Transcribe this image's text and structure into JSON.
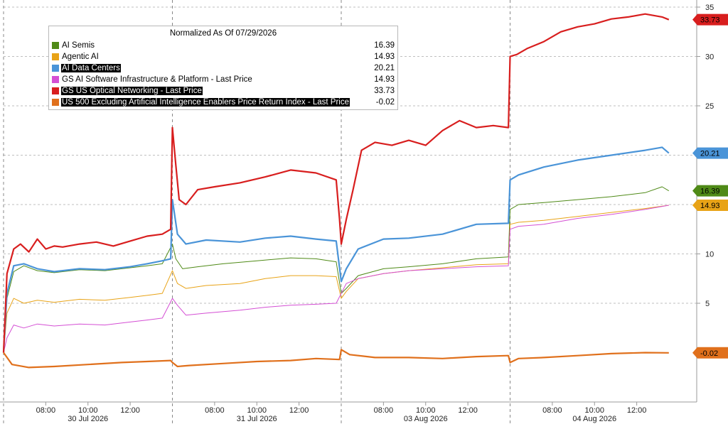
{
  "chart_data": {
    "type": "line",
    "title": "Normalized As Of 07/29/2026",
    "ylim": [
      -5,
      35
    ],
    "yticks": [
      5,
      10,
      15,
      20,
      25,
      30,
      35
    ],
    "grid": true,
    "legend_placement": "top-left",
    "x_time_ticks": [
      "08:00",
      "10:00",
      "12:00",
      "08:00",
      "10:00",
      "12:00",
      "08:00",
      "10:00",
      "12:00",
      "08:00",
      "10:00",
      "12:00"
    ],
    "x_day_labels": [
      "30 Jul 2026",
      "31 Jul 2026",
      "03 Aug 2026",
      "04 Aug 2026"
    ],
    "x_units": "sessions",
    "series": [
      {
        "name": "AI Semis",
        "color": "#4f8a17",
        "last": "16.39",
        "badge": true,
        "width": 1,
        "x": [
          0,
          0.02,
          0.06,
          0.12,
          0.2,
          0.3,
          0.45,
          0.6,
          0.75,
          0.85,
          0.94,
          1.0,
          1.02,
          1.06,
          1.15,
          1.3,
          1.5,
          1.7,
          1.85,
          1.97,
          2.0,
          2.03,
          2.1,
          2.25,
          2.4,
          2.6,
          2.8,
          2.99,
          3.0,
          3.05,
          3.2,
          3.4,
          3.6,
          3.8,
          3.9,
          3.94
        ],
        "values": [
          0,
          5.5,
          8.2,
          8.8,
          8.3,
          8.1,
          8.4,
          8.3,
          8.6,
          8.8,
          9.0,
          11.0,
          9.5,
          8.5,
          8.7,
          9.0,
          9.3,
          9.6,
          9.5,
          9.2,
          6.0,
          6.5,
          7.8,
          8.5,
          8.7,
          9.0,
          9.5,
          9.7,
          14.5,
          15.0,
          15.2,
          15.5,
          15.8,
          16.2,
          16.8,
          16.39
        ]
      },
      {
        "name": "Agentic AI",
        "color": "#e8a317",
        "last": "14.93",
        "badge": true,
        "width": 1,
        "x": [
          0,
          0.02,
          0.06,
          0.12,
          0.2,
          0.3,
          0.45,
          0.6,
          0.75,
          0.85,
          0.94,
          1.0,
          1.03,
          1.08,
          1.2,
          1.4,
          1.55,
          1.7,
          1.85,
          1.97,
          2.0,
          2.03,
          2.1,
          2.25,
          2.4,
          2.6,
          2.8,
          2.99,
          3.0,
          3.05,
          3.2,
          3.4,
          3.6,
          3.8,
          3.94
        ],
        "values": [
          0,
          4.0,
          5.5,
          5.0,
          5.3,
          5.1,
          5.4,
          5.3,
          5.6,
          5.8,
          6.0,
          8.3,
          7.0,
          6.5,
          6.8,
          7.0,
          7.5,
          7.8,
          7.8,
          7.7,
          5.5,
          6.2,
          7.5,
          8.0,
          8.3,
          8.6,
          8.9,
          9.0,
          13.0,
          13.2,
          13.4,
          13.8,
          14.2,
          14.6,
          14.93
        ]
      },
      {
        "name": "AI Data Centers",
        "color": "#4a94d8",
        "last": "20.21",
        "badge": true,
        "width": 2.2,
        "highlight": true,
        "x": [
          0,
          0.02,
          0.06,
          0.12,
          0.2,
          0.3,
          0.45,
          0.6,
          0.75,
          0.85,
          0.94,
          0.99,
          1.0,
          1.03,
          1.08,
          1.2,
          1.4,
          1.55,
          1.7,
          1.85,
          1.97,
          2.0,
          2.03,
          2.1,
          2.25,
          2.4,
          2.6,
          2.8,
          2.99,
          3.0,
          3.05,
          3.2,
          3.4,
          3.6,
          3.8,
          3.9,
          3.94
        ],
        "values": [
          0,
          6.0,
          8.8,
          9.0,
          8.5,
          8.2,
          8.5,
          8.4,
          8.7,
          9.0,
          9.3,
          9.5,
          15.5,
          12.0,
          11.0,
          11.4,
          11.2,
          11.6,
          11.8,
          11.5,
          11.3,
          7.2,
          8.5,
          10.5,
          11.5,
          11.6,
          12.0,
          13.0,
          13.1,
          17.5,
          18.0,
          18.8,
          19.5,
          20.0,
          20.5,
          20.8,
          20.21
        ]
      },
      {
        "name": "GS AI Software Infrastructure & Platform - Last Price",
        "color": "#d44fd4",
        "last": "14.93",
        "badge": false,
        "width": 1,
        "x": [
          0,
          0.02,
          0.06,
          0.12,
          0.2,
          0.3,
          0.45,
          0.6,
          0.75,
          0.85,
          0.94,
          1.0,
          1.03,
          1.08,
          1.2,
          1.4,
          1.55,
          1.7,
          1.85,
          1.97,
          2.0,
          2.03,
          2.1,
          2.25,
          2.4,
          2.6,
          2.8,
          2.99,
          3.0,
          3.05,
          3.2,
          3.4,
          3.6,
          3.8,
          3.94
        ],
        "values": [
          0,
          1.5,
          2.8,
          2.5,
          2.9,
          2.7,
          2.9,
          2.8,
          3.1,
          3.3,
          3.5,
          5.5,
          4.8,
          3.8,
          4.0,
          4.3,
          4.6,
          4.8,
          4.9,
          5.0,
          6.0,
          7.0,
          7.5,
          8.0,
          8.3,
          8.5,
          8.7,
          8.8,
          12.5,
          12.8,
          13.0,
          13.6,
          14.0,
          14.5,
          14.93
        ]
      },
      {
        "name": "GS US Optical Networking - Last Price",
        "color": "#d81e1e",
        "last": "33.73",
        "badge": true,
        "width": 2.2,
        "highlight": true,
        "x": [
          0,
          0.02,
          0.06,
          0.1,
          0.15,
          0.2,
          0.25,
          0.3,
          0.35,
          0.45,
          0.55,
          0.65,
          0.75,
          0.85,
          0.94,
          0.99,
          1.0,
          1.02,
          1.04,
          1.08,
          1.15,
          1.25,
          1.4,
          1.55,
          1.7,
          1.85,
          1.97,
          1.99,
          2.0,
          2.03,
          2.07,
          2.12,
          2.2,
          2.3,
          2.4,
          2.5,
          2.6,
          2.7,
          2.8,
          2.9,
          2.99,
          3.0,
          3.04,
          3.1,
          3.2,
          3.3,
          3.4,
          3.5,
          3.6,
          3.7,
          3.8,
          3.9,
          3.94
        ],
        "values": [
          0,
          8.0,
          10.5,
          11.0,
          10.2,
          11.5,
          10.5,
          10.8,
          10.7,
          11.0,
          11.2,
          10.8,
          11.3,
          11.8,
          12.0,
          12.5,
          22.8,
          19.0,
          15.5,
          15.0,
          16.5,
          16.8,
          17.2,
          17.8,
          18.5,
          18.2,
          17.5,
          13.5,
          11.0,
          13.5,
          16.5,
          20.5,
          21.3,
          21.0,
          21.5,
          21.0,
          22.5,
          23.5,
          22.8,
          23.0,
          22.8,
          30.0,
          30.2,
          30.8,
          31.5,
          32.5,
          33.0,
          33.3,
          33.8,
          34.0,
          34.3,
          34.0,
          33.73
        ]
      },
      {
        "name": "US 500 Excluding Artificial Intelligence Enablers Price Return Index - Last Price",
        "color": "#e0701c",
        "last": "-0.02",
        "badge": true,
        "width": 2.2,
        "highlight": true,
        "x": [
          0,
          0.05,
          0.15,
          0.3,
          0.5,
          0.7,
          0.85,
          0.99,
          1.0,
          1.03,
          1.1,
          1.3,
          1.5,
          1.7,
          1.85,
          1.99,
          2.0,
          2.05,
          2.2,
          2.4,
          2.6,
          2.8,
          2.99,
          3.0,
          3.05,
          3.2,
          3.4,
          3.6,
          3.8,
          3.94
        ],
        "values": [
          0,
          -1.2,
          -1.5,
          -1.4,
          -1.2,
          -1.0,
          -0.9,
          -0.8,
          -1.0,
          -1.4,
          -1.3,
          -1.1,
          -0.9,
          -0.8,
          -0.6,
          -0.7,
          0.3,
          -0.2,
          -0.5,
          -0.5,
          -0.6,
          -0.4,
          -0.3,
          -1.0,
          -0.6,
          -0.5,
          -0.3,
          -0.1,
          0.0,
          -0.02
        ]
      }
    ]
  }
}
